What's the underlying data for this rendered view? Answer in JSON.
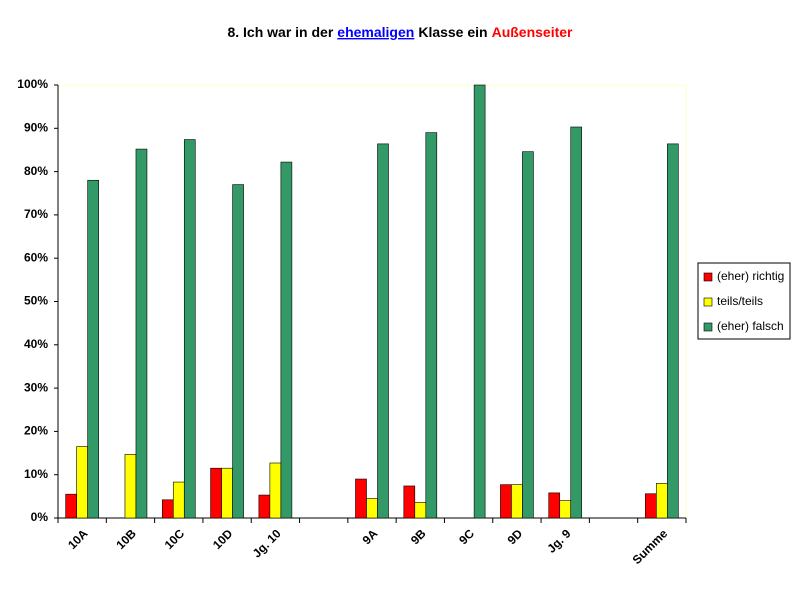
{
  "chart_data": {
    "type": "bar",
    "title_parts": [
      {
        "text": "8. Ich war in der",
        "color": "#000000"
      },
      {
        "text": "ehemaligen",
        "color": "#0000ff",
        "underline": true
      },
      {
        "text": "Klasse ein",
        "color": "#000000"
      },
      {
        "text": "Außenseiter",
        "color": "#ff0000"
      }
    ],
    "categories": [
      "10A",
      "10B",
      "10C",
      "10D",
      "Jg. 10",
      null,
      "9A",
      "9B",
      "9C",
      "9D",
      "Jg. 9",
      null,
      "Summe"
    ],
    "series": [
      {
        "name": "(eher) richtig",
        "color": "#ff0000",
        "values": [
          5.5,
          0,
          4.2,
          11.5,
          5.3,
          null,
          9,
          7.4,
          0,
          7.7,
          5.8,
          null,
          5.6
        ]
      },
      {
        "name": "teils/teils",
        "color": "#ffff00",
        "values": [
          16.5,
          14.7,
          8.3,
          11.5,
          12.7,
          null,
          4.5,
          3.6,
          0,
          7.7,
          4,
          null,
          8
        ]
      },
      {
        "name": "(eher) falsch",
        "color": "#339966",
        "values": [
          78,
          85.2,
          87.4,
          77,
          82.2,
          null,
          86.4,
          89,
          100,
          84.6,
          90.3,
          null,
          86.4
        ]
      }
    ],
    "ylim": [
      0,
      100
    ],
    "yticks": [
      {
        "value": 0,
        "label": "0%"
      },
      {
        "value": 10,
        "label": "10%"
      },
      {
        "value": 20,
        "label": "20%"
      },
      {
        "value": 30,
        "label": "30%"
      },
      {
        "value": 40,
        "label": "40%"
      },
      {
        "value": 50,
        "label": "50%"
      },
      {
        "value": 60,
        "label": "60%"
      },
      {
        "value": 70,
        "label": "70%"
      },
      {
        "value": 80,
        "label": "80%"
      },
      {
        "value": 90,
        "label": "90%"
      },
      {
        "value": 100,
        "label": "100%"
      }
    ],
    "grid": false,
    "legend": "right"
  }
}
